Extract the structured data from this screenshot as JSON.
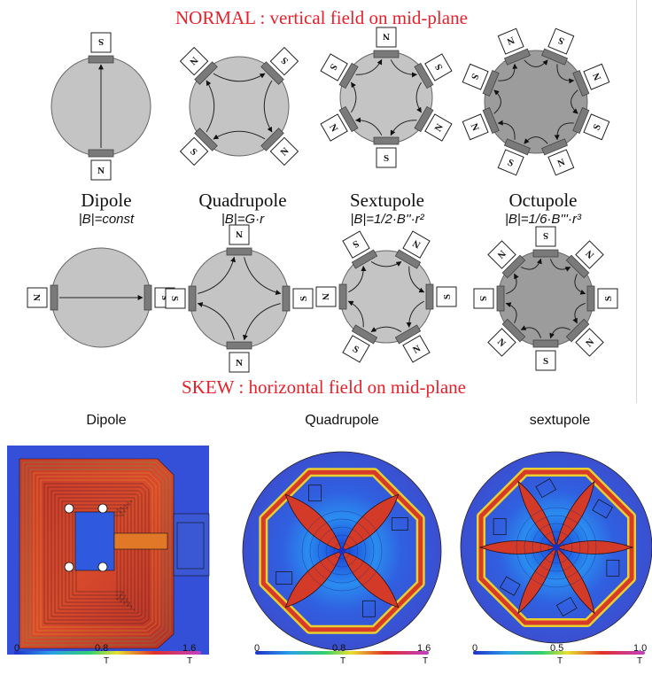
{
  "normal_heading": "NORMAL : vertical field on mid-plane",
  "skew_heading": "SKEW : horizontal field on mid-plane",
  "magnets": [
    {
      "name": "Dipole",
      "formula": "|B|=const"
    },
    {
      "name": "Quadrupole",
      "formula": "|B|=G·r"
    },
    {
      "name": "Sextupole",
      "formula": "|B|=1/2·B''·r²"
    },
    {
      "name": "Octupole",
      "formula": "|B|=1/6·B'''·r³"
    }
  ],
  "pole_labels": {
    "north": "N",
    "south": "S"
  },
  "simulations": [
    {
      "title": "Dipole",
      "scale_ticks": [
        "0",
        "0.8",
        "1.6"
      ],
      "unit": "T"
    },
    {
      "title": "Quadrupole",
      "scale_ticks": [
        "0",
        "0.8",
        "1.6"
      ],
      "unit": "T"
    },
    {
      "title": "sextupole",
      "scale_ticks": [
        "0",
        "0.5",
        "1.0"
      ],
      "unit": "T"
    }
  ],
  "colors": {
    "heading": "#e8202a",
    "yoke_light": "#c4c4c4",
    "yoke_dark": "#9c9c9c",
    "pole": "#7a7a7a",
    "field_bg": "#3a5fd6"
  }
}
